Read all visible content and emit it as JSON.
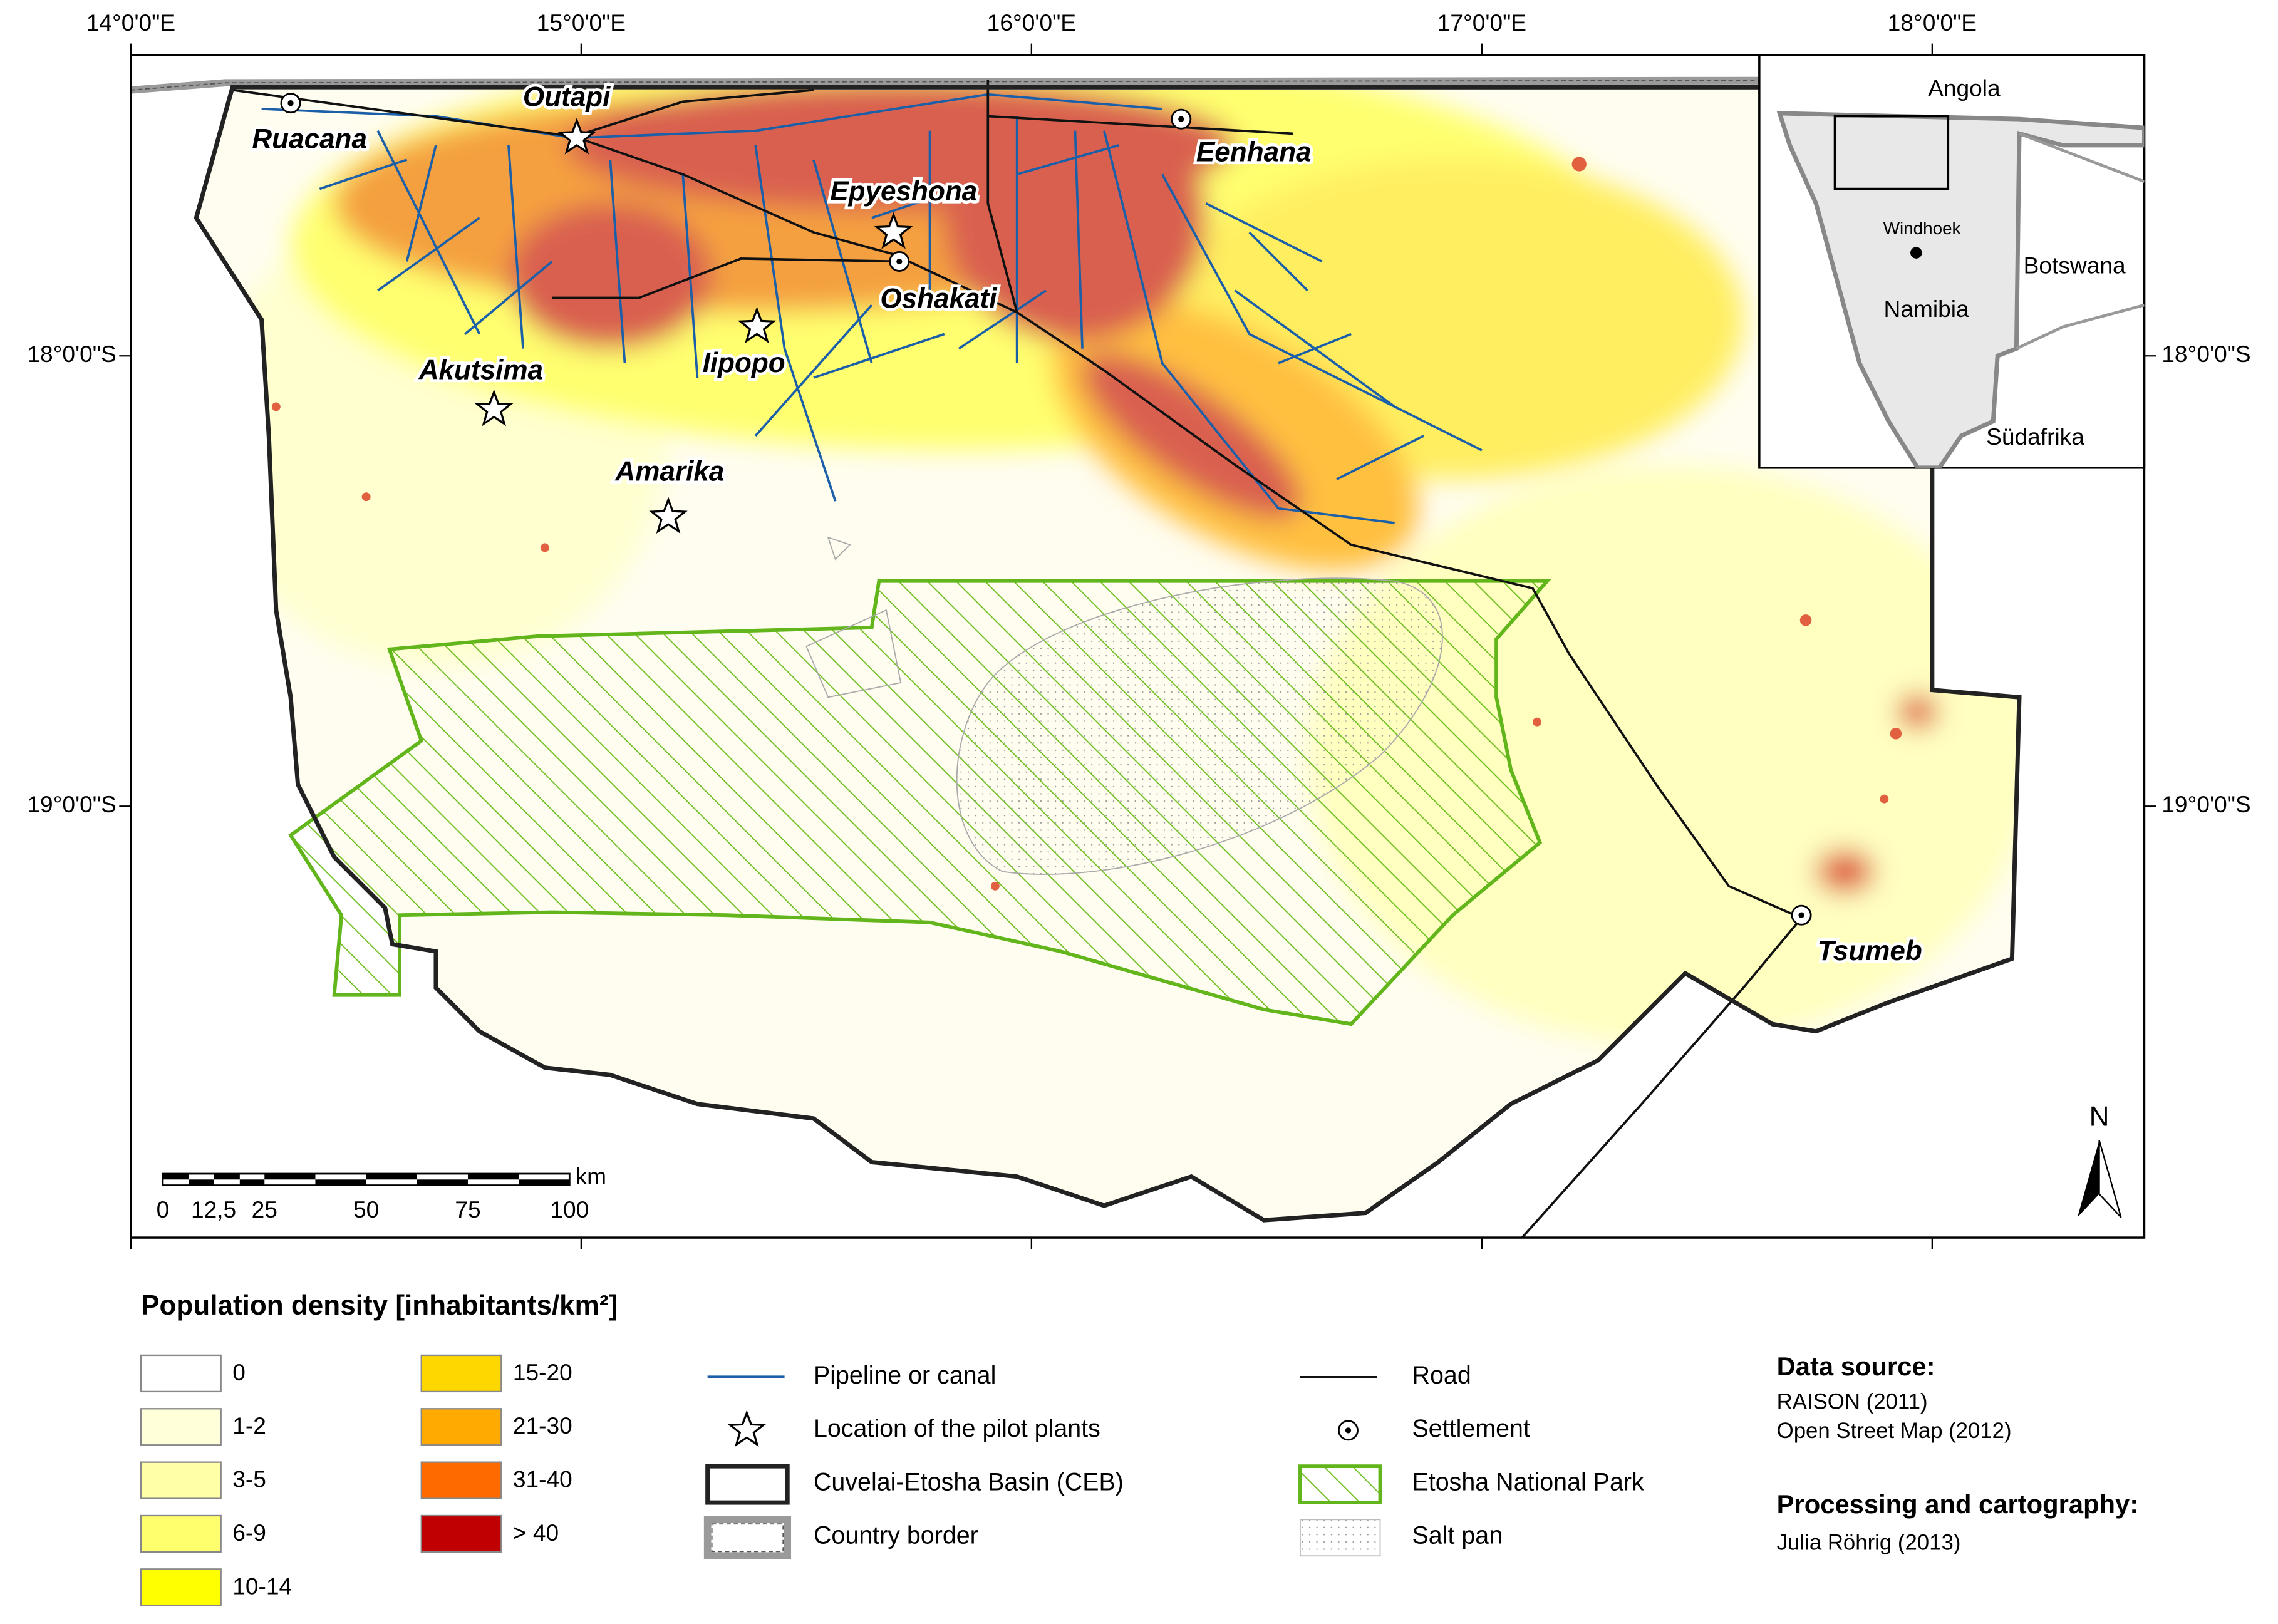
{
  "map": {
    "lon_labels": [
      "14°0'0\"E",
      "15°0'0\"E",
      "16°0'0\"E",
      "17°0'0\"E",
      "18°0'0\"E"
    ],
    "lat_labels": [
      "18°0'0\"S",
      "19°0'0\"S"
    ],
    "places": [
      {
        "label": "Outapi",
        "marker": "star"
      },
      {
        "label": "Ruacana",
        "marker": "settlement"
      },
      {
        "label": "Eenhana",
        "marker": "settlement"
      },
      {
        "label": "Epyeshona",
        "marker": "star"
      },
      {
        "label": "Oshakati",
        "marker": "settlement"
      },
      {
        "label": "Iipopo",
        "marker": "star"
      },
      {
        "label": "Akutsima",
        "marker": "star"
      },
      {
        "label": "Amarika",
        "marker": "star"
      },
      {
        "label": "Tsumeb",
        "marker": "settlement"
      }
    ],
    "scale_bar": {
      "labels": [
        "0",
        "12,5",
        "25",
        "50",
        "75",
        "100"
      ],
      "unit": "km"
    },
    "north_arrow": "N",
    "inset": {
      "labels": [
        "Angola",
        "Windhoek",
        "Botswana",
        "Namibia",
        "Südafrika"
      ]
    }
  },
  "legend": {
    "title": "Population density [inhabitants/km²]",
    "density_classes": [
      {
        "label": "0",
        "color": "#ffffff"
      },
      {
        "label": "1-2",
        "color": "#ffffd9"
      },
      {
        "label": "3-5",
        "color": "#ffffa8"
      },
      {
        "label": "6-9",
        "color": "#ffff6e"
      },
      {
        "label": "10-14",
        "color": "#ffff00"
      },
      {
        "label": "15-20",
        "color": "#ffd700"
      },
      {
        "label": "21-30",
        "color": "#ffaa00"
      },
      {
        "label": "31-40",
        "color": "#ff6a00"
      },
      {
        "label": "> 40",
        "color": "#c00000"
      }
    ],
    "symbols": [
      "Pipeline or canal",
      "Location of the pilot plants",
      "Cuvelai-Etosha Basin (CEB)",
      "Country border",
      "Road",
      "Settlement",
      "Etosha National Park",
      "Salt pan"
    ]
  },
  "credits": {
    "data_source_title": "Data source:",
    "data_sources": [
      "RAISON (2011)",
      "Open Street Map (2012)"
    ],
    "processing_title": "Processing and cartography:",
    "processing": [
      "Julia Röhrig (2013)"
    ]
  }
}
